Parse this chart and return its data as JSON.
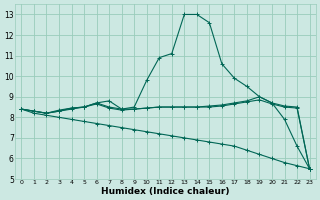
{
  "xlabel": "Humidex (Indice chaleur)",
  "ylabel": "",
  "background_color": "#cce8e2",
  "grid_color": "#99ccbb",
  "line_color": "#006655",
  "x_values": [
    0,
    1,
    2,
    3,
    4,
    5,
    6,
    7,
    8,
    9,
    10,
    11,
    12,
    13,
    14,
    15,
    16,
    17,
    18,
    19,
    20,
    21,
    22,
    23
  ],
  "s0": [
    8.4,
    8.3,
    8.2,
    8.3,
    8.45,
    8.5,
    8.7,
    8.8,
    8.4,
    8.5,
    9.8,
    10.9,
    11.1,
    13.0,
    13.0,
    12.6,
    10.6,
    9.9,
    9.5,
    9.0,
    8.7,
    7.9,
    6.6,
    5.5
  ],
  "s1": [
    8.4,
    8.3,
    8.2,
    8.35,
    8.45,
    8.5,
    8.7,
    8.5,
    8.4,
    8.4,
    8.45,
    8.5,
    8.5,
    8.5,
    8.5,
    8.55,
    8.6,
    8.7,
    8.8,
    9.0,
    8.7,
    8.55,
    8.5,
    5.5
  ],
  "s2": [
    8.4,
    8.3,
    8.2,
    8.3,
    8.4,
    8.5,
    8.65,
    8.45,
    8.35,
    8.4,
    8.45,
    8.5,
    8.5,
    8.5,
    8.5,
    8.5,
    8.55,
    8.65,
    8.75,
    8.85,
    8.65,
    8.5,
    8.45,
    5.5
  ],
  "s3": [
    8.4,
    8.2,
    8.1,
    8.0,
    7.9,
    7.8,
    7.7,
    7.6,
    7.5,
    7.4,
    7.3,
    7.2,
    7.1,
    7.0,
    6.9,
    6.8,
    6.7,
    6.6,
    6.4,
    6.2,
    6.0,
    5.8,
    5.65,
    5.5
  ],
  "ylim": [
    5,
    13.5
  ],
  "xlim": [
    -0.5,
    23.5
  ],
  "yticks": [
    5,
    6,
    7,
    8,
    9,
    10,
    11,
    12,
    13
  ],
  "xticks": [
    0,
    1,
    2,
    3,
    4,
    5,
    6,
    7,
    8,
    9,
    10,
    11,
    12,
    13,
    14,
    15,
    16,
    17,
    18,
    19,
    20,
    21,
    22,
    23
  ]
}
